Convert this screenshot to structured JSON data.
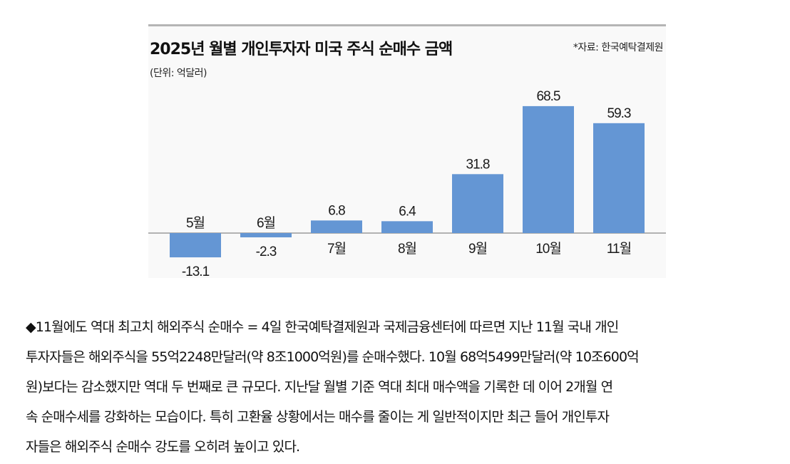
{
  "chart_header": {
    "title": "2025년 월별 개인투자자 미국 주식 순매수 금액",
    "source": "*자료: 한국예탁결제원",
    "unit": "(단위: 억달러)"
  },
  "chart_data": {
    "type": "bar",
    "title": "2025년 월별 개인투자자 미국 주식 순매수 금액",
    "xlabel": "",
    "ylabel": "",
    "unit": "억달러",
    "categories": [
      "5월",
      "6월",
      "7월",
      "8월",
      "9월",
      "10월",
      "11월"
    ],
    "values": [
      -13.1,
      -2.3,
      6.8,
      6.4,
      31.8,
      68.5,
      59.3
    ],
    "value_labels": [
      "-13.1",
      "-2.3",
      "6.8",
      "6.4",
      "31.8",
      "68.5",
      "59.3"
    ],
    "ylim": [
      -15,
      70
    ],
    "grid": false,
    "bar_color": "#6496d4",
    "zero_line_color": "#9a9a9a"
  },
  "article": {
    "lines": [
      "◆11월에도 역대 최고치 해외주식 순매수 = 4일 한국예탁결제원과 국제금융센터에 따르면 지난 11월 국내 개인",
      "투자자들은 해외주식을 55억2248만달러(약 8조1000억원)를 순매수했다. 10월 68억5499만달러(약 10조600억",
      "원)보다는 감소했지만 역대 두 번째로 큰 규모다. 지난달 월별 기준 역대 최대 매수액을 기록한 데 이어 2개월 연",
      "속 순매수세를 강화하는 모습이다. 특히 고환율 상황에서는 매수를 줄이는 게 일반적이지만 최근 들어 개인투자",
      "자들은 해외주식 순매수 강도를 오히려 높이고 있다."
    ]
  }
}
